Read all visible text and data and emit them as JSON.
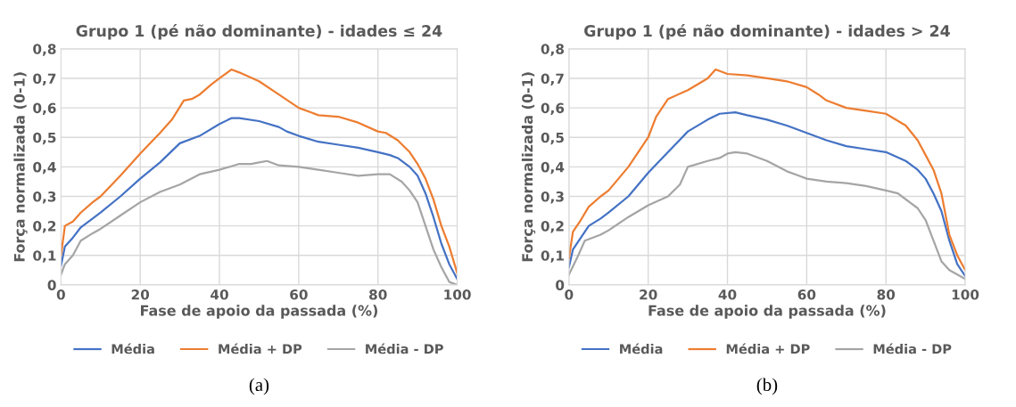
{
  "chart_data": [
    {
      "type": "line",
      "title": "Grupo 1 (pé não dominante) - idades ≤ 24",
      "xlabel": "Fase de apoio da passada (%)",
      "ylabel": "Força normalizada (0-1)",
      "xlim": [
        0,
        100
      ],
      "xticks": [
        0,
        20,
        40,
        60,
        80,
        100
      ],
      "ylim": [
        0,
        0.8
      ],
      "yticks": [
        {
          "value": 0,
          "label": "0"
        },
        {
          "value": 0.1,
          "label": "0,1"
        },
        {
          "value": 0.2,
          "label": "0,2"
        },
        {
          "value": 0.3,
          "label": "0,3"
        },
        {
          "value": 0.4,
          "label": "0,4"
        },
        {
          "value": 0.5,
          "label": "0,5"
        },
        {
          "value": 0.6,
          "label": "0,6"
        },
        {
          "value": 0.7,
          "label": "0,7"
        },
        {
          "value": 0.8,
          "label": "0,8"
        }
      ],
      "grid": true,
      "legend": "bottom",
      "line_style": "solid",
      "annotations": [
        "(a)"
      ],
      "series": [
        {
          "name": "Média",
          "color": "#4472c4",
          "x": [
            0,
            1,
            3,
            5,
            8,
            10,
            15,
            20,
            25,
            30,
            35,
            40,
            43,
            45,
            50,
            55,
            57,
            60,
            65,
            70,
            75,
            80,
            83,
            85,
            88,
            90,
            92,
            94,
            96,
            98,
            100
          ],
          "values": [
            0.065,
            0.13,
            0.16,
            0.195,
            0.225,
            0.245,
            0.3,
            0.36,
            0.415,
            0.48,
            0.505,
            0.545,
            0.565,
            0.565,
            0.555,
            0.535,
            0.52,
            0.505,
            0.485,
            0.475,
            0.465,
            0.45,
            0.44,
            0.43,
            0.4,
            0.37,
            0.31,
            0.23,
            0.14,
            0.07,
            0.02
          ]
        },
        {
          "name": "Média + DP",
          "color": "#ed7d31",
          "x": [
            0,
            1,
            3,
            5,
            8,
            10,
            15,
            20,
            25,
            28,
            31,
            33,
            35,
            38,
            40,
            43,
            45,
            50,
            55,
            60,
            63,
            65,
            70,
            75,
            80,
            82,
            85,
            88,
            90,
            92,
            94,
            96,
            98,
            100
          ],
          "values": [
            0.1,
            0.2,
            0.215,
            0.245,
            0.28,
            0.3,
            0.37,
            0.445,
            0.515,
            0.56,
            0.625,
            0.63,
            0.645,
            0.68,
            0.7,
            0.73,
            0.72,
            0.69,
            0.645,
            0.6,
            0.585,
            0.575,
            0.57,
            0.55,
            0.52,
            0.515,
            0.49,
            0.45,
            0.41,
            0.36,
            0.29,
            0.2,
            0.13,
            0.04
          ]
        },
        {
          "name": "Média - DP",
          "color": "#a5a5a5",
          "x": [
            0,
            1,
            3,
            5,
            8,
            10,
            15,
            20,
            25,
            30,
            35,
            40,
            45,
            48,
            50,
            52,
            55,
            60,
            65,
            70,
            75,
            80,
            83,
            86,
            88,
            90,
            92,
            94,
            96,
            98,
            100
          ],
          "values": [
            0.035,
            0.07,
            0.1,
            0.15,
            0.175,
            0.19,
            0.235,
            0.28,
            0.315,
            0.34,
            0.375,
            0.39,
            0.41,
            0.41,
            0.415,
            0.42,
            0.405,
            0.4,
            0.39,
            0.38,
            0.37,
            0.375,
            0.375,
            0.35,
            0.32,
            0.28,
            0.2,
            0.12,
            0.06,
            0.01,
            0.0
          ]
        }
      ]
    },
    {
      "type": "line",
      "title": "Grupo 1 (pé não dominante) - idades > 24",
      "xlabel": "Fase de apoio da passada (%)",
      "ylabel": "Força normalizada (0-1)",
      "xlim": [
        0,
        100
      ],
      "xticks": [
        0,
        20,
        40,
        60,
        80,
        100
      ],
      "ylim": [
        0,
        0.8
      ],
      "yticks": [
        {
          "value": 0,
          "label": "0"
        },
        {
          "value": 0.1,
          "label": "0,1"
        },
        {
          "value": 0.2,
          "label": "0,2"
        },
        {
          "value": 0.3,
          "label": "0,3"
        },
        {
          "value": 0.4,
          "label": "0,4"
        },
        {
          "value": 0.5,
          "label": "0,5"
        },
        {
          "value": 0.6,
          "label": "0,6"
        },
        {
          "value": 0.7,
          "label": "0,7"
        },
        {
          "value": 0.8,
          "label": "0,8"
        }
      ],
      "grid": true,
      "legend": "bottom",
      "line_style": "solid",
      "annotations": [
        "(b)"
      ],
      "series": [
        {
          "name": "Média",
          "color": "#4472c4",
          "x": [
            0,
            1,
            3,
            5,
            8,
            10,
            15,
            20,
            25,
            30,
            35,
            38,
            42,
            45,
            50,
            55,
            60,
            65,
            70,
            75,
            80,
            85,
            88,
            90,
            92,
            94,
            96,
            98,
            100
          ],
          "values": [
            0.06,
            0.12,
            0.16,
            0.2,
            0.225,
            0.245,
            0.3,
            0.38,
            0.45,
            0.52,
            0.56,
            0.58,
            0.585,
            0.575,
            0.56,
            0.54,
            0.515,
            0.49,
            0.47,
            0.46,
            0.45,
            0.42,
            0.39,
            0.36,
            0.31,
            0.25,
            0.15,
            0.07,
            0.03
          ]
        },
        {
          "name": "Média + DP",
          "color": "#ed7d31",
          "x": [
            0,
            1,
            3,
            5,
            8,
            10,
            15,
            20,
            22,
            25,
            30,
            35,
            37,
            40,
            45,
            50,
            55,
            60,
            63,
            65,
            70,
            75,
            80,
            85,
            88,
            90,
            92,
            94,
            96,
            98,
            100
          ],
          "values": [
            0.09,
            0.18,
            0.22,
            0.265,
            0.3,
            0.32,
            0.4,
            0.5,
            0.57,
            0.63,
            0.66,
            0.7,
            0.73,
            0.715,
            0.71,
            0.7,
            0.69,
            0.67,
            0.645,
            0.625,
            0.6,
            0.59,
            0.58,
            0.54,
            0.49,
            0.44,
            0.39,
            0.31,
            0.17,
            0.1,
            0.05
          ]
        },
        {
          "name": "Média - DP",
          "color": "#a5a5a5",
          "x": [
            0,
            2,
            4,
            8,
            10,
            15,
            20,
            25,
            28,
            30,
            35,
            38,
            40,
            42,
            45,
            50,
            55,
            58,
            60,
            65,
            70,
            75,
            80,
            83,
            86,
            88,
            90,
            92,
            94,
            96,
            100
          ],
          "values": [
            0.035,
            0.09,
            0.15,
            0.17,
            0.185,
            0.23,
            0.27,
            0.3,
            0.34,
            0.4,
            0.42,
            0.43,
            0.445,
            0.45,
            0.445,
            0.42,
            0.385,
            0.37,
            0.36,
            0.35,
            0.345,
            0.335,
            0.32,
            0.31,
            0.28,
            0.26,
            0.22,
            0.15,
            0.08,
            0.05,
            0.02
          ]
        }
      ]
    }
  ]
}
